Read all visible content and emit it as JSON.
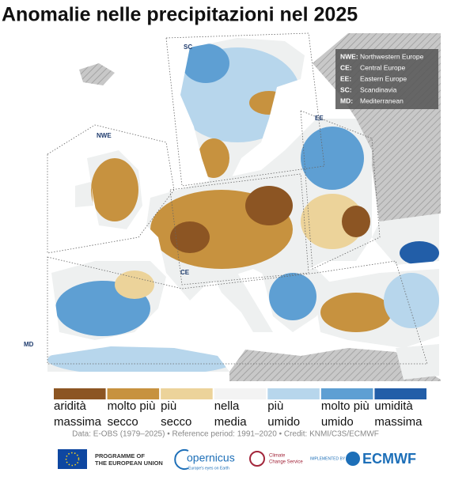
{
  "header": {
    "title": "Anomalie nelle precipitazioni nel 2025"
  },
  "map": {
    "region_labels": [
      "SC",
      "NWE",
      "EE",
      "CE",
      "MD"
    ],
    "key": [
      {
        "code": "NWE:",
        "name": "Northwestern Europe"
      },
      {
        "code": "CE:",
        "name": "Central Europe"
      },
      {
        "code": "EE:",
        "name": "Eastern Europe"
      },
      {
        "code": "SC:",
        "name": "Scandinavia"
      },
      {
        "code": "MD:",
        "name": "Mediterranean"
      }
    ]
  },
  "legend": {
    "items": [
      {
        "lines": [
          "aridità",
          "massima"
        ],
        "color": "#8c5523"
      },
      {
        "lines": [
          "molto più",
          "secco"
        ],
        "color": "#c7923f"
      },
      {
        "lines": [
          "più",
          "secco"
        ],
        "color": "#ecd39a"
      },
      {
        "lines": [
          "nella",
          "media"
        ],
        "color": "#f3f3f3"
      },
      {
        "lines": [
          "più",
          "umido"
        ],
        "color": "#b7d6ec"
      },
      {
        "lines": [
          "molto più",
          "umido"
        ],
        "color": "#5e9fd3"
      },
      {
        "lines": [
          "umidità",
          "massima"
        ],
        "color": "#225ea8"
      }
    ]
  },
  "credit": "Data: E-OBS (1979–2025) • Reference period: 1991–2020 • Credit: KNMI/C3S/ECMWF",
  "logos": {
    "eu": [
      "PROGRAMME OF",
      "THE EUROPEAN UNION"
    ],
    "copernicus": "opernicus",
    "copernicus_sub": "Europe's eyes on Earth",
    "c3s": [
      "Climate",
      "Change Service"
    ],
    "implemented": "IMPLEMENTED BY",
    "ecmwf": "ECMWF"
  }
}
